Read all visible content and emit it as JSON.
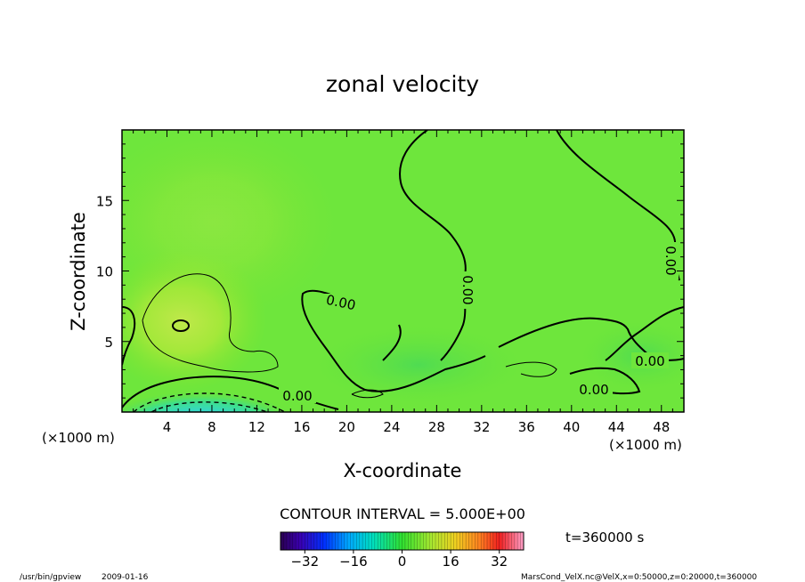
{
  "chart_data": {
    "type": "contour",
    "title": "zonal velocity",
    "xlabel": "X-coordinate",
    "ylabel": "Z-coordinate",
    "x_unit": "(×1000 m)",
    "z_unit": "(×1000 m)",
    "xlim": [
      0,
      50
    ],
    "ylim": [
      0,
      20
    ],
    "xticks": [
      4,
      8,
      12,
      16,
      20,
      24,
      28,
      32,
      36,
      40,
      44,
      48
    ],
    "yticks": [
      5,
      10,
      15
    ],
    "contour_interval_text": "CONTOUR INTERVAL = 5.000E+00",
    "time_text": "t=360000 s",
    "colorbar": {
      "min": -40,
      "max": 40,
      "ticks": [
        -32,
        -16,
        0,
        16,
        32
      ],
      "colormap": "rainbow"
    },
    "contour_labels": [
      {
        "text": "0.00",
        "x": 19.5,
        "z": 7.8,
        "rotate": 12
      },
      {
        "text": "0.00",
        "x": 31.3,
        "z": 8.5,
        "rotate": 90
      },
      {
        "text": "0.00",
        "x": 48.5,
        "z": 11.2,
        "rotate": 90
      },
      {
        "text": "0.00",
        "x": 46.1,
        "z": 3.6,
        "rotate": 0
      },
      {
        "text": "0.00",
        "x": 41.6,
        "z": 1.6,
        "rotate": 0
      },
      {
        "text": "0.00",
        "x": 15.8,
        "z": 1.2,
        "rotate": 0
      }
    ]
  },
  "footer": {
    "program": "/usr/bin/gpview",
    "date": "2009-01-16",
    "source": "MarsCond_VelX.nc@VelX,x=0:50000,z=0:20000,t=360000"
  }
}
